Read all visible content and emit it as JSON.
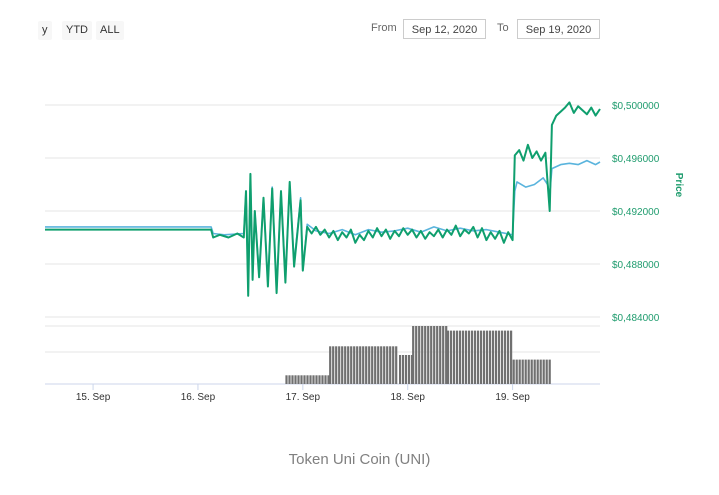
{
  "range_selector": {
    "buttons": [
      "y",
      "YTD",
      "ALL"
    ]
  },
  "date_range": {
    "from_label": "From",
    "from_value": "Sep 12, 2020",
    "to_label": "To",
    "to_value": "Sep 19, 2020"
  },
  "caption": "Token Uni Coin (UNI)",
  "colors": {
    "price_primary": "#0f9f6e",
    "price_secondary": "#5ab4dd",
    "volume": "#707070",
    "grid": "#e6e6e6",
    "axis_text": "#1f9c6e"
  },
  "chart_data": {
    "type": "line",
    "x_axis": {
      "type": "datetime",
      "ticks": [
        "15. Sep",
        "16. Sep",
        "17. Sep",
        "18. Sep",
        "19. Sep"
      ],
      "xlim": [
        "2020-09-14 13:00",
        "2020-09-19 20:00"
      ]
    },
    "y_axis": {
      "title": "Price",
      "ticks": [
        "$0,484000",
        "$0,488000",
        "$0,492000",
        "$0,496000",
        "$0,500000"
      ],
      "ylim": [
        0.484,
        0.5
      ],
      "grid": true
    },
    "series": [
      {
        "kind": "line",
        "points": [
          [
            "2020-09-14 13:00",
            0.4908
          ],
          [
            "2020-09-16 03:00",
            0.4908
          ],
          [
            "2020-09-16 03:30",
            0.4903
          ],
          [
            "2020-09-16 06:00",
            0.4902
          ],
          [
            "2020-09-16 10:30",
            0.4903
          ],
          [
            "2020-09-16 11:00",
            0.4935
          ],
          [
            "2020-09-16 11:30",
            0.486
          ],
          [
            "2020-09-16 12:00",
            0.4948
          ],
          [
            "2020-09-16 12:30",
            0.487
          ],
          [
            "2020-09-16 13:00",
            0.492
          ],
          [
            "2020-09-16 14:00",
            0.4872
          ],
          [
            "2020-09-16 15:00",
            0.493
          ],
          [
            "2020-09-16 16:00",
            0.4865
          ],
          [
            "2020-09-16 17:00",
            0.4938
          ],
          [
            "2020-09-16 18:00",
            0.486
          ],
          [
            "2020-09-16 19:00",
            0.4935
          ],
          [
            "2020-09-16 20:00",
            0.4868
          ],
          [
            "2020-09-16 21:00",
            0.494
          ],
          [
            "2020-09-16 22:00",
            0.488
          ],
          [
            "2020-09-16 23:30",
            0.493
          ],
          [
            "2020-09-17 00:00",
            0.4875
          ],
          [
            "2020-09-17 01:00",
            0.491
          ],
          [
            "2020-09-17 03:00",
            0.4905
          ],
          [
            "2020-09-17 06:00",
            0.4903
          ],
          [
            "2020-09-17 09:00",
            0.4906
          ],
          [
            "2020-09-17 12:00",
            0.4902
          ],
          [
            "2020-09-17 15:00",
            0.4906
          ],
          [
            "2020-09-17 18:00",
            0.4904
          ],
          [
            "2020-09-17 21:00",
            0.4905
          ],
          [
            "2020-09-18 00:00",
            0.4907
          ],
          [
            "2020-09-18 03:00",
            0.4904
          ],
          [
            "2020-09-18 06:00",
            0.4908
          ],
          [
            "2020-09-18 09:00",
            0.4905
          ],
          [
            "2020-09-18 12:00",
            0.4907
          ],
          [
            "2020-09-18 15:00",
            0.4905
          ],
          [
            "2020-09-18 18:00",
            0.4906
          ],
          [
            "2020-09-18 21:00",
            0.4904
          ],
          [
            "2020-09-19 00:00",
            0.4902
          ],
          [
            "2020-09-19 00:30",
            0.4935
          ],
          [
            "2020-09-19 01:00",
            0.4942
          ],
          [
            "2020-09-19 03:00",
            0.4938
          ],
          [
            "2020-09-19 05:00",
            0.494
          ],
          [
            "2020-09-19 07:00",
            0.4945
          ],
          [
            "2020-09-19 08:00",
            0.494
          ],
          [
            "2020-09-19 08:30",
            0.4932
          ],
          [
            "2020-09-19 09:00",
            0.4952
          ],
          [
            "2020-09-19 11:00",
            0.4955
          ],
          [
            "2020-09-19 13:00",
            0.4956
          ],
          [
            "2020-09-19 15:00",
            0.4955
          ],
          [
            "2020-09-19 17:00",
            0.4958
          ],
          [
            "2020-09-19 19:00",
            0.4955
          ],
          [
            "2020-09-19 20:00",
            0.4957
          ]
        ]
      },
      {
        "kind": "line",
        "points": [
          [
            "2020-09-14 13:00",
            0.4906
          ],
          [
            "2020-09-16 03:00",
            0.4906
          ],
          [
            "2020-09-16 03:30",
            0.49
          ],
          [
            "2020-09-16 05:00",
            0.4902
          ],
          [
            "2020-09-16 07:00",
            0.49
          ],
          [
            "2020-09-16 09:00",
            0.4903
          ],
          [
            "2020-09-16 10:30",
            0.49
          ],
          [
            "2020-09-16 11:00",
            0.4935
          ],
          [
            "2020-09-16 11:30",
            0.4856
          ],
          [
            "2020-09-16 12:00",
            0.4948
          ],
          [
            "2020-09-16 12:30",
            0.4868
          ],
          [
            "2020-09-16 13:00",
            0.492
          ],
          [
            "2020-09-16 14:00",
            0.487
          ],
          [
            "2020-09-16 15:00",
            0.493
          ],
          [
            "2020-09-16 16:00",
            0.4863
          ],
          [
            "2020-09-16 17:00",
            0.4937
          ],
          [
            "2020-09-16 18:00",
            0.4858
          ],
          [
            "2020-09-16 19:00",
            0.4935
          ],
          [
            "2020-09-16 20:00",
            0.4866
          ],
          [
            "2020-09-16 21:00",
            0.4942
          ],
          [
            "2020-09-16 22:00",
            0.4878
          ],
          [
            "2020-09-16 23:30",
            0.4928
          ],
          [
            "2020-09-17 00:00",
            0.4875
          ],
          [
            "2020-09-17 01:00",
            0.4908
          ],
          [
            "2020-09-17 02:00",
            0.4903
          ],
          [
            "2020-09-17 03:00",
            0.4908
          ],
          [
            "2020-09-17 04:00",
            0.4902
          ],
          [
            "2020-09-17 05:00",
            0.4906
          ],
          [
            "2020-09-17 06:00",
            0.49
          ],
          [
            "2020-09-17 07:00",
            0.4905
          ],
          [
            "2020-09-17 08:00",
            0.4898
          ],
          [
            "2020-09-17 09:00",
            0.4904
          ],
          [
            "2020-09-17 10:00",
            0.49
          ],
          [
            "2020-09-17 11:00",
            0.4906
          ],
          [
            "2020-09-17 12:00",
            0.4896
          ],
          [
            "2020-09-17 13:00",
            0.4902
          ],
          [
            "2020-09-17 14:00",
            0.4898
          ],
          [
            "2020-09-17 15:00",
            0.4905
          ],
          [
            "2020-09-17 16:00",
            0.49
          ],
          [
            "2020-09-17 17:00",
            0.4907
          ],
          [
            "2020-09-17 18:00",
            0.4901
          ],
          [
            "2020-09-17 19:00",
            0.4906
          ],
          [
            "2020-09-17 20:00",
            0.4899
          ],
          [
            "2020-09-17 21:00",
            0.4905
          ],
          [
            "2020-09-17 22:00",
            0.4901
          ],
          [
            "2020-09-17 23:00",
            0.4907
          ],
          [
            "2020-09-18 00:00",
            0.4902
          ],
          [
            "2020-09-18 01:00",
            0.4906
          ],
          [
            "2020-09-18 02:00",
            0.49
          ],
          [
            "2020-09-18 03:00",
            0.4905
          ],
          [
            "2020-09-18 04:00",
            0.4899
          ],
          [
            "2020-09-18 05:00",
            0.4904
          ],
          [
            "2020-09-18 06:00",
            0.4901
          ],
          [
            "2020-09-18 07:00",
            0.4906
          ],
          [
            "2020-09-18 08:00",
            0.49
          ],
          [
            "2020-09-18 09:00",
            0.4906
          ],
          [
            "2020-09-18 10:00",
            0.4902
          ],
          [
            "2020-09-18 11:00",
            0.4909
          ],
          [
            "2020-09-18 12:00",
            0.4901
          ],
          [
            "2020-09-18 13:00",
            0.4906
          ],
          [
            "2020-09-18 14:00",
            0.4903
          ],
          [
            "2020-09-18 15:00",
            0.4908
          ],
          [
            "2020-09-18 16:00",
            0.49
          ],
          [
            "2020-09-18 17:00",
            0.4907
          ],
          [
            "2020-09-18 18:00",
            0.4898
          ],
          [
            "2020-09-18 19:00",
            0.4904
          ],
          [
            "2020-09-18 20:00",
            0.4899
          ],
          [
            "2020-09-18 21:00",
            0.4905
          ],
          [
            "2020-09-18 22:00",
            0.4896
          ],
          [
            "2020-09-18 23:00",
            0.4904
          ],
          [
            "2020-09-19 00:00",
            0.4898
          ],
          [
            "2020-09-19 00:30",
            0.4962
          ],
          [
            "2020-09-19 01:30",
            0.4966
          ],
          [
            "2020-09-19 02:30",
            0.4958
          ],
          [
            "2020-09-19 03:30",
            0.497
          ],
          [
            "2020-09-19 04:30",
            0.496
          ],
          [
            "2020-09-19 05:30",
            0.4965
          ],
          [
            "2020-09-19 06:30",
            0.4958
          ],
          [
            "2020-09-19 07:30",
            0.4964
          ],
          [
            "2020-09-19 08:30",
            0.492
          ],
          [
            "2020-09-19 09:00",
            0.4985
          ],
          [
            "2020-09-19 10:00",
            0.4992
          ],
          [
            "2020-09-19 11:00",
            0.4995
          ],
          [
            "2020-09-19 12:00",
            0.4998
          ],
          [
            "2020-09-19 13:00",
            0.5002
          ],
          [
            "2020-09-19 14:00",
            0.4994
          ],
          [
            "2020-09-19 15:00",
            0.4999
          ],
          [
            "2020-09-19 16:00",
            0.4996
          ],
          [
            "2020-09-19 17:00",
            0.4993
          ],
          [
            "2020-09-19 18:00",
            0.4998
          ],
          [
            "2020-09-19 19:00",
            0.4992
          ],
          [
            "2020-09-19 20:00",
            0.4997
          ]
        ]
      }
    ],
    "volume_bars": [
      {
        "start": "2020-09-16 20:00",
        "end": "2020-09-17 06:00",
        "level": 0.15
      },
      {
        "start": "2020-09-17 06:00",
        "end": "2020-09-17 22:00",
        "level": 0.65
      },
      {
        "start": "2020-09-17 22:00",
        "end": "2020-09-18 01:00",
        "level": 0.5
      },
      {
        "start": "2020-09-18 01:00",
        "end": "2020-09-18 09:00",
        "level": 1.0
      },
      {
        "start": "2020-09-18 09:00",
        "end": "2020-09-19 00:00",
        "level": 0.92
      },
      {
        "start": "2020-09-19 00:00",
        "end": "2020-09-19 09:00",
        "level": 0.42
      }
    ]
  }
}
